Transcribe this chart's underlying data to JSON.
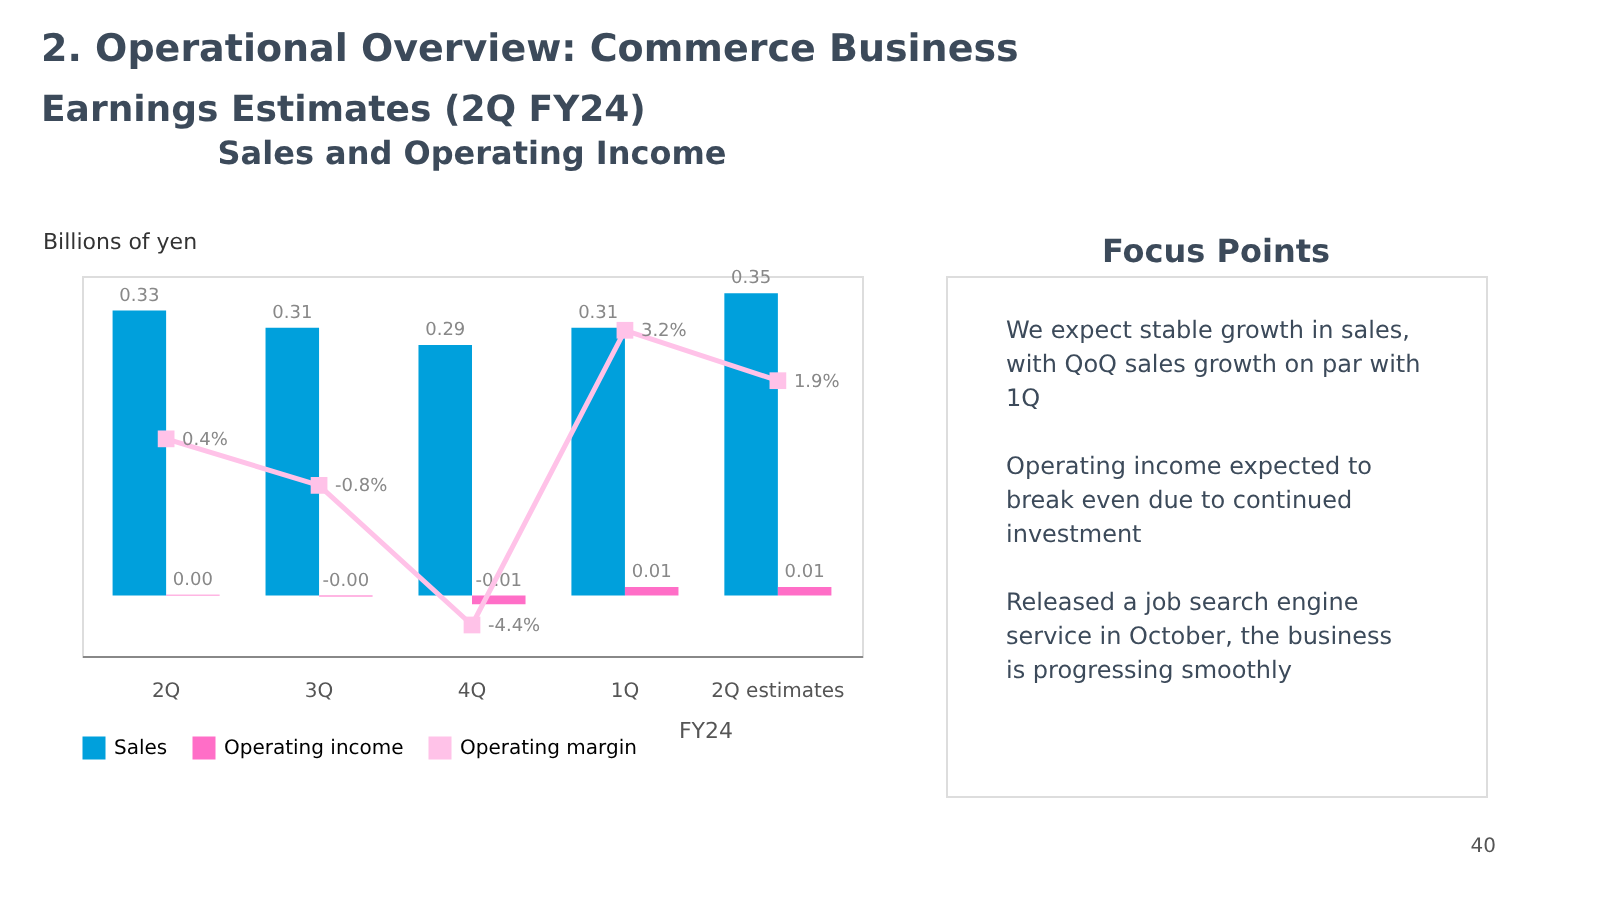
{
  "chart_data": [
    {
      "type": "bar",
      "title": "2. Operational Overview: Commerce Business",
      "subtitle": "Earnings Estimates (2Q FY24)",
      "ylabel": "Billions of yen",
      "annotations": [
        "Sales and Operating Income",
        "FY24"
      ],
      "categories": [
        "2Q",
        "3Q",
        "4Q",
        "1Q",
        "2Q estimates"
      ],
      "series": [
        {
          "name": "Sales",
          "color": "#00a0dc",
          "values": [
            0.33,
            0.31,
            0.29,
            0.31,
            0.35
          ],
          "value_labels": [
            "0.33",
            "0.31",
            "0.29",
            "0.31",
            "0.35"
          ]
        },
        {
          "name": "Operating income",
          "color": "#ff6ec7",
          "values": [
            0.001,
            -0.001,
            -0.01,
            0.01,
            0.01
          ],
          "value_labels": [
            "0.00",
            "-0.00",
            "-0.01",
            "0.01",
            "0.01"
          ]
        },
        {
          "name": "Operating margin",
          "type": "line",
          "axis": "y2",
          "color": "#ffc2e8",
          "marker": "square",
          "line_style": "solid",
          "values": [
            0.4,
            -0.8,
            -4.4,
            3.2,
            1.9
          ],
          "value_labels": [
            "0.4%",
            "-0.8%",
            "-4.4%",
            "3.2%",
            "1.9%"
          ]
        }
      ],
      "ylim": [
        -0.07,
        0.37
      ],
      "y2lim": [
        -5.2,
        4.6
      ],
      "tick_labels": "x",
      "legend": "bottom"
    },
    {
      "type": "other",
      "title": "Focus Points",
      "annotations": [
        "We expect stable growth in sales, with QoQ sales growth on par with 1Q",
        "Operating income expected to break even due to continued investment",
        "Released a job search engine service in October, the business is progressing smoothly",
        "40"
      ]
    }
  ]
}
